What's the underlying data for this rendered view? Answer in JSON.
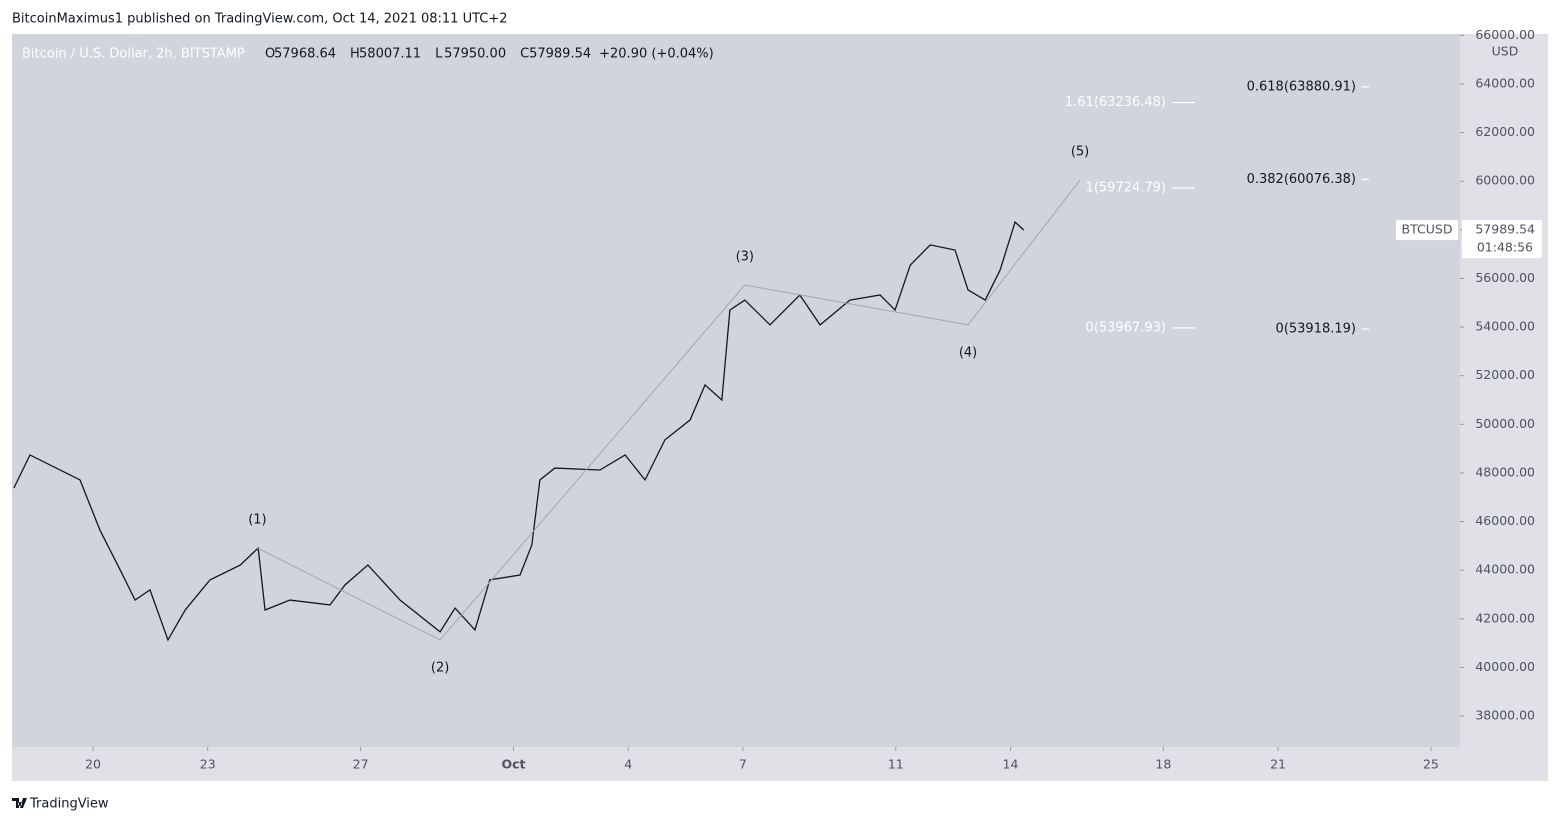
{
  "header": {
    "publisher": "BitcoinMaximus1 published on TradingView.com, Oct 14, 2021 08:11 UTC+2"
  },
  "legend": {
    "symbol": "Bitcoin / U.S. Dollar, 2h, BITSTAMP",
    "fields": [
      {
        "key": "O",
        "value": "57968.64"
      },
      {
        "key": "H",
        "value": "58007.11"
      },
      {
        "key": "L",
        "value": "57950.00"
      },
      {
        "key": "C",
        "value": "57989.54"
      }
    ],
    "change": "+20.90 (+0.04%)"
  },
  "price_tag": {
    "symbol": "BTCUSD",
    "price": {
      "value": 57989.54,
      "label": "57989.54"
    },
    "countdown": "01:48:56"
  },
  "footer": {
    "brand": "TradingView"
  },
  "chart_data": {
    "type": "line",
    "currency": "USD",
    "color": "#131722",
    "x": [
      17.93,
      18.35,
      19.66,
      20.18,
      20.71,
      21.1,
      21.49,
      21.96,
      22.41,
      23.06,
      23.85,
      24.32,
      24.5,
      25.15,
      26.2,
      26.59,
      27.19,
      28.03,
      29.08,
      29.47,
      29.99,
      30.38,
      31.17,
      31.48,
      31.69,
      32.08,
      33.26,
      33.92,
      34.44,
      34.96,
      35.62,
      36.01,
      36.45,
      36.66,
      37.05,
      37.71,
      38.49,
      39.02,
      39.8,
      40.59,
      40.98,
      41.38,
      41.9,
      42.55,
      42.89,
      43.34,
      43.73,
      44.12,
      44.35
    ],
    "values": [
      47380,
      48740,
      47710,
      45650,
      44010,
      42770,
      43190,
      41130,
      42360,
      43600,
      44210,
      44910,
      42360,
      42770,
      42570,
      43390,
      44210,
      42770,
      41460,
      42440,
      41540,
      43600,
      43800,
      45040,
      47710,
      48200,
      48120,
      48740,
      47710,
      49360,
      50180,
      51620,
      51000,
      54700,
      55110,
      54090,
      55320,
      54090,
      55110,
      55320,
      54700,
      56550,
      57380,
      57170,
      55530,
      55110,
      56350,
      58320,
      57990
    ],
    "waves": {
      "labels": [
        "(1)",
        "(2)",
        "(3)",
        "(4)",
        "(5)"
      ],
      "x": [
        24.3,
        29.08,
        37.05,
        42.89,
        45.82
      ],
      "values": [
        44910,
        41130,
        55730,
        54090,
        60050
      ]
    },
    "fib_left": [
      {
        "value": 63236.48,
        "label": "1.61(63236.48)"
      },
      {
        "value": 59724.79,
        "label": "1(59724.79)"
      },
      {
        "value": 53967.93,
        "label": "0(53967.93)"
      }
    ],
    "fib_right": [
      {
        "value": 63880.91,
        "label": "0.618(63880.91)"
      },
      {
        "value": 60076.38,
        "label": "0.382(60076.38)"
      },
      {
        "value": 53918.19,
        "label": "0(53918.19)"
      }
    ],
    "xlim": [
      17.88,
      55.76
    ],
    "xticks": [
      20,
      23,
      27,
      {
        "value": 31,
        "label": "Oct"
      },
      {
        "value": 34,
        "label": "4"
      },
      {
        "value": 37,
        "label": "7"
      },
      {
        "value": 41,
        "label": "11"
      },
      {
        "value": 44,
        "label": "14"
      },
      {
        "value": 48,
        "label": "18"
      },
      {
        "value": 51,
        "label": "21"
      },
      {
        "value": 55,
        "label": "25"
      }
    ],
    "ylim": [
      36725,
      66057
    ],
    "yticks": [
      {
        "value": 38000,
        "label": "38000.00"
      },
      {
        "value": 40000,
        "label": "40000.00"
      },
      {
        "value": 42000,
        "label": "42000.00"
      },
      {
        "value": 44000,
        "label": "44000.00"
      },
      {
        "value": 46000,
        "label": "46000.00"
      },
      {
        "value": 48000,
        "label": "48000.00"
      },
      {
        "value": 50000,
        "label": "50000.00"
      },
      {
        "value": 52000,
        "label": "52000.00"
      },
      {
        "value": 54000,
        "label": "54000.00"
      },
      {
        "value": 56000,
        "label": "56000.00"
      },
      {
        "value": 58000,
        "label": "58000.00"
      },
      {
        "value": 60000,
        "label": "60000.00"
      },
      {
        "value": 62000,
        "label": "62000.00"
      },
      {
        "value": 64000,
        "label": "64000.00"
      },
      {
        "value": 66000,
        "label": "66000.00"
      }
    ]
  }
}
